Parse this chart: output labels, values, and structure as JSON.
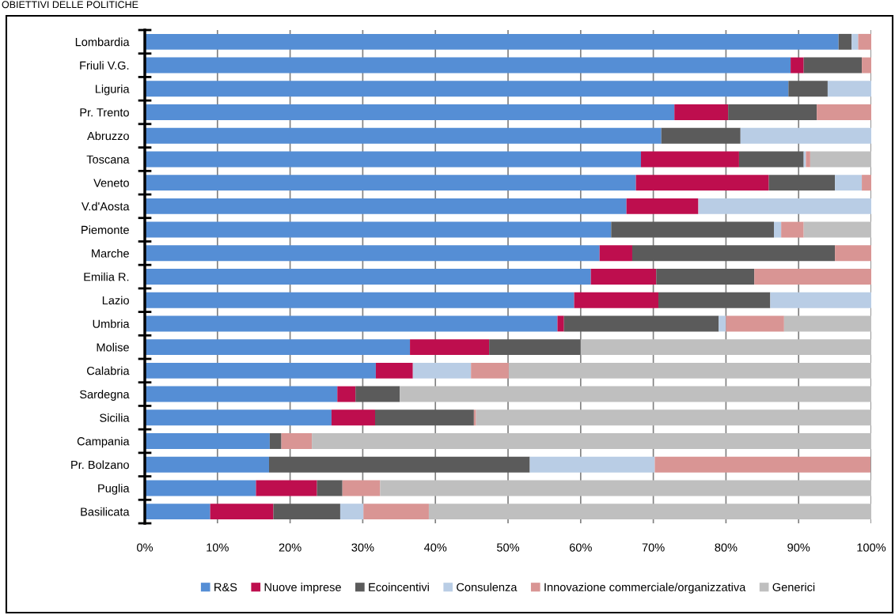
{
  "chart_data": {
    "type": "bar",
    "orientation": "horizontal",
    "stacked": true,
    "title": "OBIETTIVI DELLE POLITICHE",
    "categories": [
      "Lombardia",
      "Friuli V.G.",
      "Liguria",
      "Pr. Trento",
      "Abruzzo",
      "Toscana",
      "Veneto",
      "V.d'Aosta",
      "Piemonte",
      "Marche",
      "Emilia R.",
      "Lazio",
      "Umbria",
      "Molise",
      "Calabria",
      "Sardegna",
      "Sicilia",
      "Campania",
      "Pr. Bolzano",
      "Puglia",
      "Basilicata"
    ],
    "series": [
      {
        "name": "R&S",
        "color": "#558ed5",
        "values": [
          95.5,
          88.9,
          88.6,
          72.9,
          71.1,
          68.3,
          67.6,
          66.3,
          64.2,
          62.6,
          61.4,
          59.1,
          56.8,
          36.5,
          31.8,
          26.5,
          25.7,
          17.2,
          17.1,
          15.3,
          9.0
        ]
      },
      {
        "name": "Nuove imprese",
        "color": "#be0e4e",
        "values": [
          0,
          1.8,
          0,
          7.4,
          0,
          13.5,
          18.3,
          9.9,
          0,
          4.5,
          9.0,
          11.6,
          0.9,
          10.9,
          5.1,
          2.5,
          6.0,
          0,
          0,
          8.4,
          8.7
        ]
      },
      {
        "name": "Ecoincentivi",
        "color": "#5b5b5b",
        "values": [
          1.8,
          8.0,
          5.4,
          12.2,
          10.9,
          8.9,
          9.1,
          0,
          22.4,
          27.9,
          13.5,
          15.4,
          21.3,
          12.6,
          0,
          6.1,
          13.6,
          1.6,
          35.9,
          3.5,
          9.2
        ]
      },
      {
        "name": "Consulenza",
        "color": "#b9cde5",
        "values": [
          0.9,
          0,
          6.0,
          0,
          18.0,
          0.3,
          3.7,
          23.8,
          1.0,
          0,
          0,
          13.9,
          1.0,
          0,
          8.0,
          0,
          0,
          0,
          17.2,
          0,
          3.2
        ]
      },
      {
        "name": "Innovazione commerciale/organizzativa",
        "color": "#d99594",
        "values": [
          1.8,
          1.3,
          0,
          7.5,
          0,
          0.6,
          1.3,
          0,
          3.1,
          5.0,
          16.1,
          0,
          8.0,
          0,
          5.2,
          0,
          0.3,
          4.2,
          29.7,
          5.2,
          9.0
        ]
      },
      {
        "name": "Generici",
        "color": "#bfbfbf",
        "values": [
          0,
          0,
          0,
          0,
          0,
          8.4,
          0,
          0,
          9.3,
          0,
          0,
          0,
          12.0,
          40.0,
          49.9,
          64.9,
          54.4,
          77.0,
          0,
          67.6,
          60.9
        ]
      }
    ],
    "xlim": [
      0,
      100
    ],
    "xticks": [
      {
        "value": 0,
        "label": "0%"
      },
      {
        "value": 10,
        "label": "10%"
      },
      {
        "value": 20,
        "label": "20%"
      },
      {
        "value": 30,
        "label": "30%"
      },
      {
        "value": 40,
        "label": "40%"
      },
      {
        "value": 50,
        "label": "50%"
      },
      {
        "value": 60,
        "label": "60%"
      },
      {
        "value": 70,
        "label": "70%"
      },
      {
        "value": 80,
        "label": "80%"
      },
      {
        "value": 90,
        "label": "90%"
      },
      {
        "value": 100,
        "label": "100%"
      }
    ],
    "grid": "x",
    "legend": "bottom"
  }
}
